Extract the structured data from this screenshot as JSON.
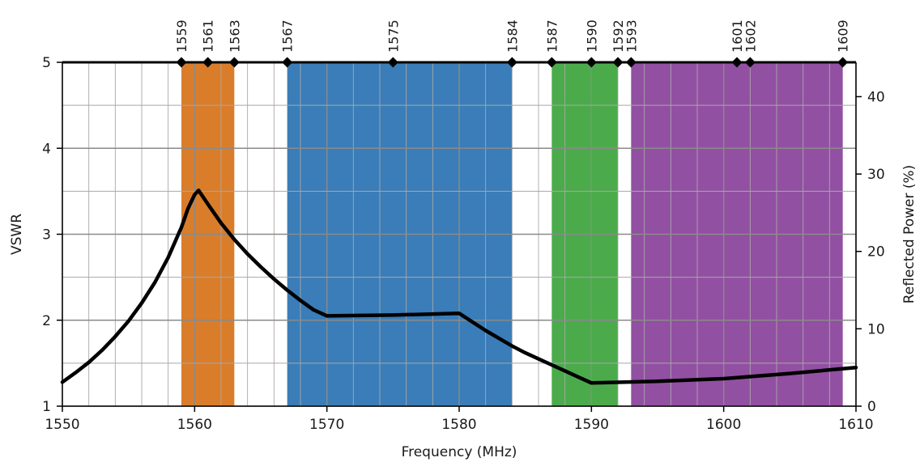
{
  "chart_data": {
    "type": "line",
    "title": "",
    "xlabel": "Frequency (MHz)",
    "ylabel": "VSWR",
    "y2label": "Reflected Power (%)",
    "xlim": [
      1550,
      1610
    ],
    "ylim": [
      1,
      5
    ],
    "y2lim": [
      0,
      44.44
    ],
    "x_ticks": [
      1550,
      1560,
      1570,
      1580,
      1590,
      1600,
      1610
    ],
    "y_ticks": [
      1,
      2,
      3,
      4,
      5
    ],
    "y2_ticks": [
      0,
      10,
      20,
      30,
      40
    ],
    "x_minor_step": 2,
    "y_minor_step": 0.5,
    "grid": true,
    "bands": [
      {
        "x0": 1559,
        "x1": 1563,
        "color": "#D97D2B"
      },
      {
        "x0": 1567,
        "x1": 1584,
        "color": "#3A7DB8"
      },
      {
        "x0": 1587,
        "x1": 1592,
        "color": "#4BAB4B"
      },
      {
        "x0": 1593,
        "x1": 1609,
        "color": "#9250A2"
      }
    ],
    "markers": [
      {
        "x": 1559,
        "label": "1559"
      },
      {
        "x": 1561,
        "label": "1561"
      },
      {
        "x": 1563,
        "label": "1563"
      },
      {
        "x": 1567,
        "label": "1567"
      },
      {
        "x": 1575,
        "label": "1575"
      },
      {
        "x": 1584,
        "label": "1584"
      },
      {
        "x": 1587,
        "label": "1587"
      },
      {
        "x": 1590,
        "label": "1590"
      },
      {
        "x": 1592,
        "label": "1592"
      },
      {
        "x": 1593,
        "label": "1593"
      },
      {
        "x": 1601,
        "label": "1601"
      },
      {
        "x": 1602,
        "label": "1602"
      },
      {
        "x": 1609,
        "label": "1609"
      }
    ],
    "series": [
      {
        "color": "#000000",
        "x": [
          1550,
          1551,
          1552,
          1553,
          1554,
          1555,
          1556,
          1557,
          1558,
          1559,
          1559.5,
          1560,
          1560.3,
          1561,
          1562,
          1563,
          1564,
          1565,
          1566,
          1567,
          1568,
          1569,
          1570,
          1575,
          1580,
          1581,
          1582,
          1583,
          1584,
          1585,
          1586,
          1587,
          1588,
          1589,
          1590,
          1595,
          1600,
          1605,
          1610
        ],
        "y": [
          1.28,
          1.39,
          1.51,
          1.65,
          1.81,
          1.99,
          2.2,
          2.44,
          2.73,
          3.08,
          3.3,
          3.46,
          3.51,
          3.35,
          3.13,
          2.94,
          2.77,
          2.62,
          2.48,
          2.35,
          2.23,
          2.12,
          2.05,
          2.06,
          2.08,
          1.98,
          1.88,
          1.79,
          1.7,
          1.62,
          1.55,
          1.48,
          1.41,
          1.34,
          1.27,
          1.29,
          1.32,
          1.38,
          1.45
        ]
      }
    ]
  }
}
